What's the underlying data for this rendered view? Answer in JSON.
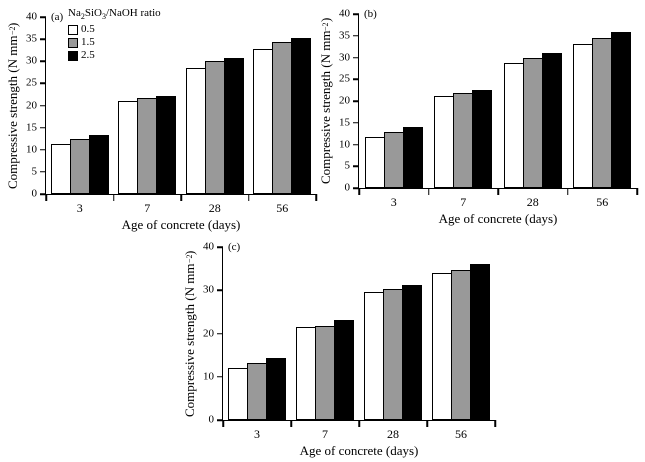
{
  "figure": {
    "background": "#ffffff",
    "legend": {
      "title_pre": "Na",
      "title_sub1": "2",
      "title_mid": "SiO",
      "title_sub2": "3",
      "title_post": "/NaOH ratio",
      "items": [
        {
          "label": "0.5",
          "color": "#ffffff"
        },
        {
          "label": "1.5",
          "color": "#999999"
        },
        {
          "label": "2.5",
          "color": "#000000"
        }
      ]
    },
    "axis": {
      "xlabel": "Age of concrete (days)",
      "ylabel_pre": "Compressive strength (N mm",
      "ylabel_sup": "−2",
      "ylabel_post": ")"
    },
    "colors": {
      "axis": "#000000",
      "bar_outline": "#000000",
      "series_white": "#ffffff",
      "series_gray": "#999999",
      "series_black": "#000000"
    }
  },
  "chart_data": [
    {
      "type": "bar",
      "panel_label": "(a)",
      "title": "",
      "xlabel": "Age of concrete (days)",
      "ylabel": "Compressive strength (N mm-2)",
      "categories": [
        "3",
        "7",
        "28",
        "56"
      ],
      "series": [
        {
          "name": "0.5",
          "color": "#ffffff",
          "values": [
            11.3,
            21.1,
            28.5,
            32.8
          ]
        },
        {
          "name": "1.5",
          "color": "#999999",
          "values": [
            12.4,
            21.8,
            30.0,
            34.4
          ]
        },
        {
          "name": "2.5",
          "color": "#000000",
          "values": [
            13.4,
            22.2,
            30.7,
            35.3
          ]
        }
      ],
      "ylim": [
        0,
        40
      ],
      "yticks": [
        0,
        5,
        10,
        15,
        20,
        25,
        30,
        35,
        40
      ],
      "grid": false,
      "legend_position": "top-left-inside"
    },
    {
      "type": "bar",
      "panel_label": "(b)",
      "title": "",
      "xlabel": "Age of concrete (days)",
      "ylabel": "Compressive strength (N mm-2)",
      "categories": [
        "3",
        "7",
        "28",
        "56"
      ],
      "series": [
        {
          "name": "0.5",
          "color": "#ffffff",
          "values": [
            11.8,
            21.1,
            28.8,
            33.2
          ]
        },
        {
          "name": "1.5",
          "color": "#999999",
          "values": [
            12.9,
            21.8,
            30.0,
            34.5
          ]
        },
        {
          "name": "2.5",
          "color": "#000000",
          "values": [
            14.0,
            22.5,
            31.1,
            35.8
          ]
        }
      ],
      "ylim": [
        0,
        40
      ],
      "yticks": [
        0,
        5,
        10,
        15,
        20,
        25,
        30,
        35,
        40
      ],
      "grid": false,
      "legend_position": "none"
    },
    {
      "type": "bar",
      "panel_label": "(c)",
      "title": "",
      "xlabel": "Age of concrete (days)",
      "ylabel": "Compressive strength (N mm-2)",
      "categories": [
        "3",
        "7",
        "28",
        "56"
      ],
      "series": [
        {
          "name": "0.5",
          "color": "#ffffff",
          "values": [
            12.1,
            21.5,
            29.5,
            34.0
          ]
        },
        {
          "name": "1.5",
          "color": "#999999",
          "values": [
            13.2,
            21.8,
            30.2,
            34.6
          ]
        },
        {
          "name": "2.5",
          "color": "#000000",
          "values": [
            14.4,
            23.2,
            31.2,
            36.0
          ]
        }
      ],
      "ylim": [
        0,
        40
      ],
      "yticks": [
        0,
        10,
        20,
        30,
        40
      ],
      "grid": false,
      "legend_position": "none"
    }
  ]
}
